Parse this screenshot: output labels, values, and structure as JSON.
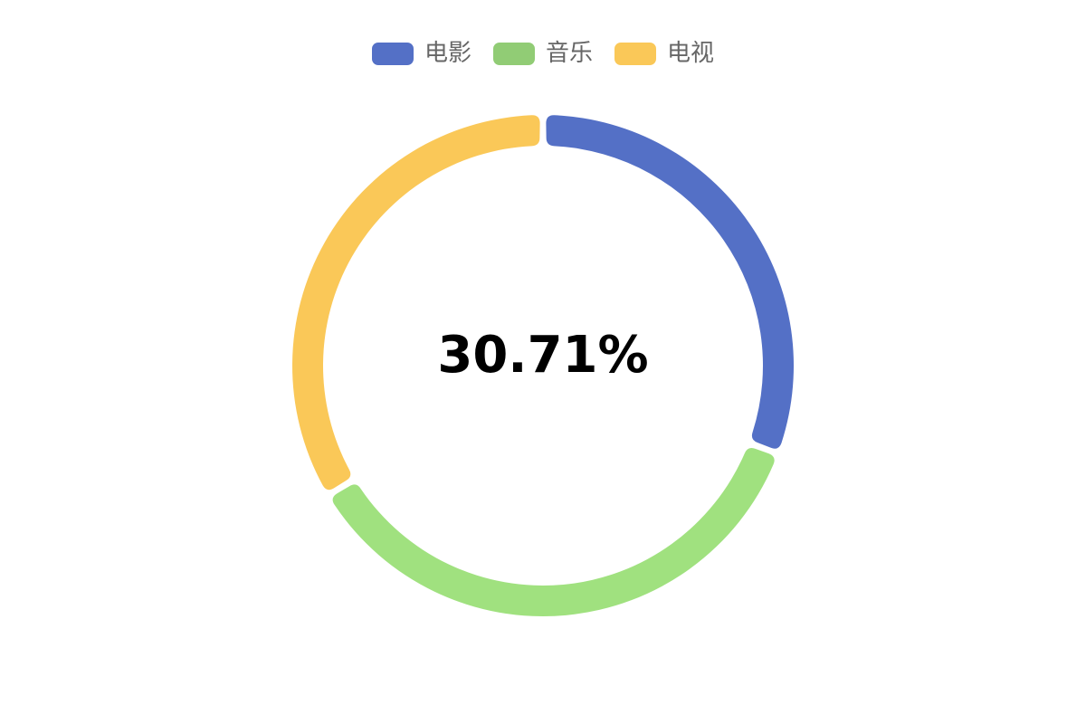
{
  "chart_data": {
    "type": "pie",
    "variant": "donut",
    "legend_position": "top-center",
    "center_label": "30.71%",
    "slices": [
      {
        "name": "电影",
        "color": "#5470c6",
        "legend_color": "#5470c6",
        "value": 30.71
      },
      {
        "name": "音乐",
        "color": "#a0e17f",
        "legend_color": "#91cc75",
        "value": 35.65
      },
      {
        "name": "电视",
        "color": "#fac858",
        "legend_color": "#fac858",
        "value": 33.64
      }
    ]
  }
}
